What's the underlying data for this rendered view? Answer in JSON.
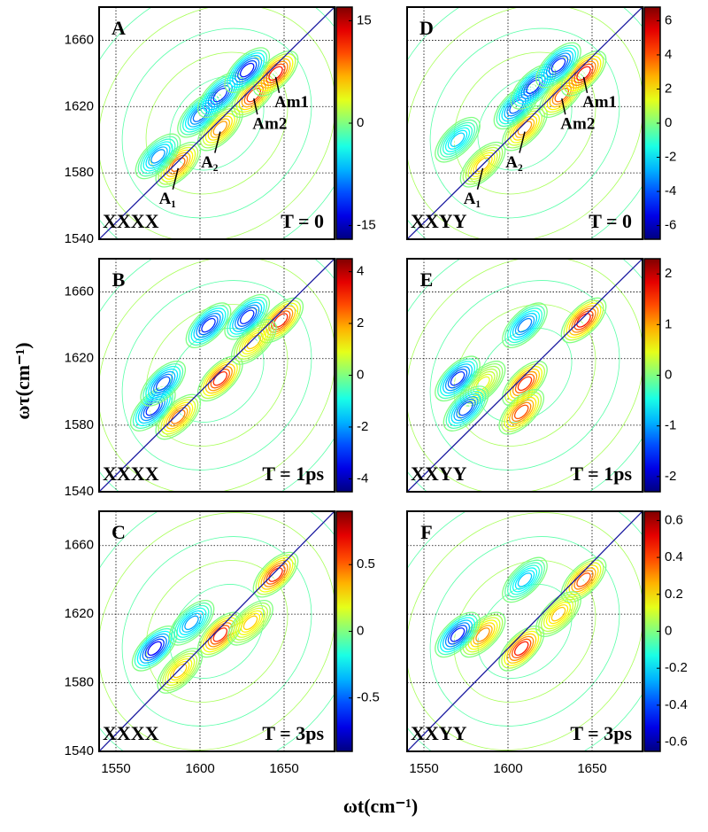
{
  "figure": {
    "xlabel": "ωt(cm⁻¹)",
    "ylabel": "ωτ(cm⁻¹)"
  },
  "chart_data": [
    {
      "type": "contour",
      "label": "A",
      "polarization": "XXXX",
      "time": "T = 0",
      "xlim": [
        1540,
        1680
      ],
      "ylim": [
        1540,
        1680
      ],
      "xticks": [
        1550,
        1600,
        1650
      ],
      "yticks": [
        1540,
        1580,
        1620,
        1660
      ],
      "clim": [
        -17,
        17
      ],
      "cticks": [
        -15,
        0,
        15
      ],
      "peaks": [
        {
          "x": 1587,
          "y": 1585,
          "value": 12,
          "label": "A₁"
        },
        {
          "x": 1612,
          "y": 1607,
          "value": 10,
          "label": "A₂"
        },
        {
          "x": 1632,
          "y": 1627,
          "value": 14,
          "label": "Am2"
        },
        {
          "x": 1645,
          "y": 1640,
          "value": 16,
          "label": "Am1"
        },
        {
          "x": 1575,
          "y": 1590,
          "value": -10
        },
        {
          "x": 1600,
          "y": 1615,
          "value": -12
        },
        {
          "x": 1612,
          "y": 1627,
          "value": -15
        },
        {
          "x": 1628,
          "y": 1642,
          "value": -16
        }
      ]
    },
    {
      "type": "contour",
      "label": "D",
      "polarization": "XXYY",
      "time": "T = 0",
      "xlim": [
        1540,
        1680
      ],
      "ylim": [
        1540,
        1680
      ],
      "xticks": [
        1550,
        1600,
        1650
      ],
      "yticks": [
        1540,
        1580,
        1620,
        1660
      ],
      "clim": [
        -6.8,
        6.8
      ],
      "cticks": [
        -6,
        -4,
        -2,
        0,
        2,
        4,
        6
      ],
      "peaks": [
        {
          "x": 1585,
          "y": 1585,
          "value": 3,
          "label": "A₁"
        },
        {
          "x": 1610,
          "y": 1607,
          "value": 4,
          "label": "A₂"
        },
        {
          "x": 1632,
          "y": 1627,
          "value": 5,
          "label": "Am2"
        },
        {
          "x": 1645,
          "y": 1640,
          "value": 6.5,
          "label": "Am1"
        },
        {
          "x": 1570,
          "y": 1600,
          "value": -3
        },
        {
          "x": 1605,
          "y": 1620,
          "value": -5
        },
        {
          "x": 1615,
          "y": 1632,
          "value": -6
        },
        {
          "x": 1630,
          "y": 1645,
          "value": -6
        }
      ]
    },
    {
      "type": "contour",
      "label": "B",
      "polarization": "XXXX",
      "time": "T = 1ps",
      "xlim": [
        1540,
        1680
      ],
      "ylim": [
        1540,
        1680
      ],
      "xticks": [
        1550,
        1600,
        1650
      ],
      "yticks": [
        1540,
        1580,
        1620,
        1660
      ],
      "clim": [
        -4.5,
        4.5
      ],
      "cticks": [
        -4,
        -2,
        0,
        2,
        4
      ],
      "peaks": [
        {
          "x": 1587,
          "y": 1585,
          "value": 3
        },
        {
          "x": 1612,
          "y": 1608,
          "value": 4
        },
        {
          "x": 1648,
          "y": 1643,
          "value": 4
        },
        {
          "x": 1632,
          "y": 1630,
          "value": 2
        },
        {
          "x": 1572,
          "y": 1590,
          "value": -4
        },
        {
          "x": 1578,
          "y": 1605,
          "value": -3.5
        },
        {
          "x": 1605,
          "y": 1640,
          "value": -4
        },
        {
          "x": 1628,
          "y": 1645,
          "value": -4
        }
      ]
    },
    {
      "type": "contour",
      "label": "E",
      "polarization": "XXYY",
      "time": "T = 1ps",
      "xlim": [
        1540,
        1680
      ],
      "ylim": [
        1540,
        1680
      ],
      "xticks": [
        1550,
        1600,
        1650
      ],
      "yticks": [
        1540,
        1580,
        1620,
        1660
      ],
      "clim": [
        -2.3,
        2.3
      ],
      "cticks": [
        -2,
        -1,
        0,
        1,
        2
      ],
      "peaks": [
        {
          "x": 1585,
          "y": 1605,
          "value": 0.6
        },
        {
          "x": 1610,
          "y": 1605,
          "value": 2
        },
        {
          "x": 1608,
          "y": 1588,
          "value": 1.8
        },
        {
          "x": 1645,
          "y": 1643,
          "value": 2.2
        },
        {
          "x": 1570,
          "y": 1608,
          "value": -2
        },
        {
          "x": 1575,
          "y": 1590,
          "value": -1.8
        },
        {
          "x": 1610,
          "y": 1640,
          "value": -1.5
        }
      ]
    },
    {
      "type": "contour",
      "label": "C",
      "polarization": "XXXX",
      "time": "T = 3ps",
      "xlim": [
        1540,
        1680
      ],
      "ylim": [
        1540,
        1680
      ],
      "xticks": [
        1550,
        1600,
        1650
      ],
      "yticks": [
        1540,
        1580,
        1620,
        1660
      ],
      "clim": [
        -0.9,
        0.9
      ],
      "cticks": [
        -0.5,
        0,
        0.5
      ],
      "peaks": [
        {
          "x": 1588,
          "y": 1587,
          "value": 0.4
        },
        {
          "x": 1612,
          "y": 1608,
          "value": 0.8
        },
        {
          "x": 1645,
          "y": 1643,
          "value": 0.8
        },
        {
          "x": 1630,
          "y": 1615,
          "value": 0.4
        },
        {
          "x": 1573,
          "y": 1600,
          "value": -0.9
        },
        {
          "x": 1595,
          "y": 1615,
          "value": -0.5
        }
      ]
    },
    {
      "type": "contour",
      "label": "F",
      "polarization": "XXYY",
      "time": "T = 3ps",
      "xlim": [
        1540,
        1680
      ],
      "ylim": [
        1540,
        1680
      ],
      "xticks": [
        1550,
        1600,
        1650
      ],
      "yticks": [
        1540,
        1580,
        1620,
        1660
      ],
      "clim": [
        -0.65,
        0.65
      ],
      "cticks": [
        -0.6,
        -0.4,
        -0.2,
        0,
        0.2,
        0.4,
        0.6
      ],
      "peaks": [
        {
          "x": 1585,
          "y": 1608,
          "value": 0.4
        },
        {
          "x": 1608,
          "y": 1600,
          "value": 0.6
        },
        {
          "x": 1645,
          "y": 1640,
          "value": 0.5
        },
        {
          "x": 1630,
          "y": 1620,
          "value": 0.3
        },
        {
          "x": 1570,
          "y": 1608,
          "value": -0.6
        },
        {
          "x": 1610,
          "y": 1640,
          "value": -0.3
        }
      ]
    }
  ]
}
